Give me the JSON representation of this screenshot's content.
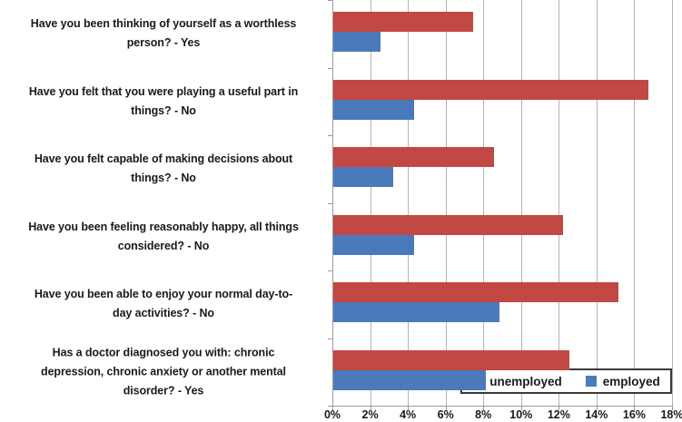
{
  "chart_data": {
    "type": "bar",
    "orientation": "horizontal",
    "title": "",
    "categories": [
      "Have you been thinking of yourself as a worthless\nperson? - Yes",
      "Have you felt that you were playing a useful part in\nthings? - No",
      "Have you felt capable of making decisions about\nthings? - No",
      "Have you been feeling reasonably happy, all things\nconsidered? - No",
      "Have you been able to enjoy your normal day-to-\nday activities? - No",
      "Has a doctor diagnosed you with: chronic\ndepression, chronic anxiety or another mental\ndisorder? - Yes"
    ],
    "series": [
      {
        "name": "unemployed",
        "color": "#c14843",
        "values": [
          7.4,
          16.7,
          8.5,
          12.2,
          15.1,
          12.5
        ]
      },
      {
        "name": "employed",
        "color": "#4a7abc",
        "values": [
          2.5,
          4.3,
          3.2,
          4.3,
          8.8,
          8.1
        ]
      }
    ],
    "value_unit": "%",
    "xlim": [
      0,
      18
    ],
    "x_ticks": [
      0,
      2,
      4,
      6,
      8,
      10,
      12,
      14,
      16,
      18
    ],
    "x_tick_labels": [
      "0%",
      "2%",
      "4%",
      "6%",
      "8%",
      "10%",
      "12%",
      "14%",
      "16%",
      "18%"
    ],
    "grid": true,
    "legend_position": "bottom-right"
  },
  "colors": {
    "unemployed": "#c14843",
    "employed": "#4a7abc",
    "gridline": "#b3b3b3",
    "axis": "#9b9b9b",
    "text": "#1a1a1a",
    "legend_border": "#3a3a3a",
    "background": "#ffffff"
  }
}
